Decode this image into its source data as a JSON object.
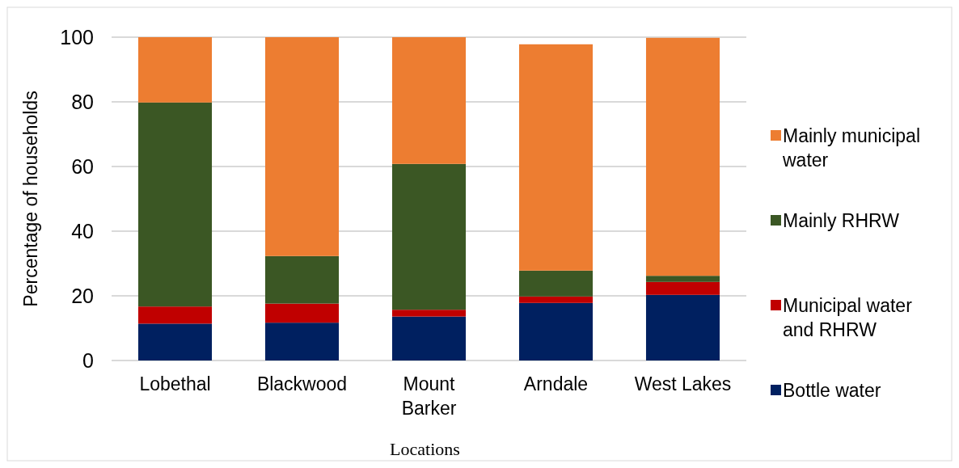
{
  "chart_data": {
    "type": "bar",
    "stacked": true,
    "xlabel": "Locations",
    "ylabel": "Percentage of households",
    "categories": [
      "Lobethal",
      "Blackwood",
      "Mount Barker",
      "Arndale",
      "West Lakes"
    ],
    "series": [
      {
        "name": "Bottle water",
        "color": "#002060",
        "values": [
          11.4,
          11.7,
          13.6,
          17.8,
          20.3
        ]
      },
      {
        "name": "Municipal water and RHRW",
        "color": "#c00000",
        "values": [
          5.3,
          5.9,
          2.1,
          2.0,
          4.0
        ]
      },
      {
        "name": "Mainly RHRW",
        "color": "#3b5724",
        "values": [
          63.1,
          14.7,
          45.1,
          8.0,
          1.9
        ]
      },
      {
        "name": "Mainly municipal water",
        "color": "#ed7d31",
        "values": [
          20.2,
          67.7,
          39.2,
          70.0,
          73.6
        ]
      }
    ],
    "ylim": [
      0,
      100
    ],
    "yticks": [
      0,
      20,
      40,
      60,
      80,
      100
    ],
    "grid": "y",
    "legend": "right"
  }
}
